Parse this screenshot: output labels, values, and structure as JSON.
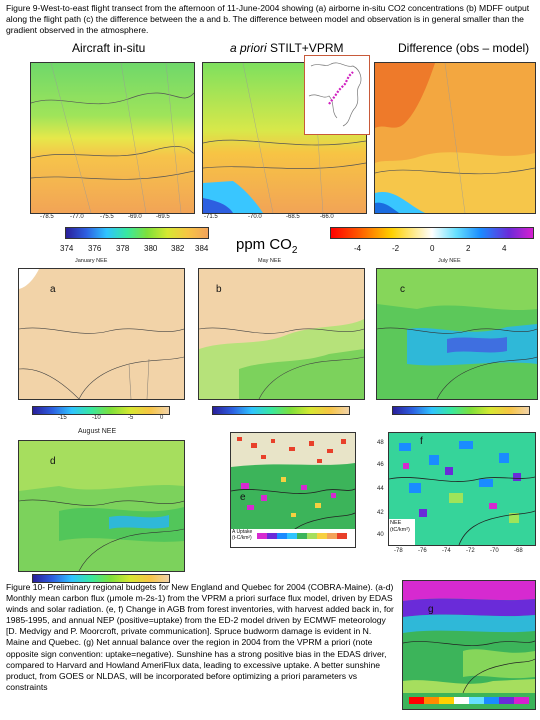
{
  "fig9": {
    "caption": "Figure 9-West-to-east flight transect from the afternoon of 11-June-2004 showing (a) airborne in-situ CO2 concentrations (b) MDFF output along the flight path (c) the difference between the a and b. The difference between model and observation is in general smaller than the gradient observed in the atmosphere.",
    "header_insitu": "Aircraft in-situ",
    "header_stilt_italic": "a priori",
    "header_stilt_rest": " STILT+VPRM",
    "header_diff": "Difference (obs – model)",
    "xticks_a": [
      "-78.5",
      "-77.0",
      "-75.5",
      "-69.0",
      "-69.5"
    ],
    "xticks_b": [
      "-71.5",
      "-70.0",
      "-68.5",
      "-66.0"
    ],
    "cbar_left_labels": [
      "374",
      "376",
      "378",
      "380",
      "382",
      "384"
    ],
    "units_base": "ppm CO",
    "units_sub": "2",
    "cbar_right_labels": [
      "-4",
      "-2",
      "0",
      "2",
      "4"
    ]
  },
  "nee": {
    "title_a": "January NEE",
    "title_b": "May NEE",
    "title_c": "July NEE",
    "title_d": "August NEE",
    "panel_a": "a",
    "panel_b": "b",
    "panel_c": "c",
    "panel_d": "d",
    "panel_e": "e",
    "panel_f": "f",
    "panel_g": "g",
    "cbar_ticks": [
      "-15",
      "-10",
      "-5",
      "0"
    ],
    "e_legend": "A Uptake\n(t-C/km²)",
    "f_legend": "NEE\n(tC/km²)",
    "f_xticks": [
      "-78",
      "-76",
      "-74",
      "-72",
      "-70",
      "-68"
    ],
    "f_yticks": [
      "48",
      "46",
      "44",
      "42",
      "40"
    ]
  },
  "fig10": {
    "caption": "Figure 10- Preliminary regional budgets for New England and Quebec for 2004 (COBRA-Maine). (a-d) Monthly mean carbon flux (μmole m-2s-1) from the VPRM a priori surface flux model, driven by EDAS winds and solar radiation. (e, f) Change in AGB from forest inventories, with harvest added back in, for 1985-1995, and annual NEP (positive=uptake) from the ED-2 model driven by ECMWF meteorology [D. Medvigy and P. Moorcroft, private communication]. Spruce budworm damage is evident in N. Maine and Quebec. (g) Net annual balance over the region in 2004 from the VPRM a priori (note opposite sign convention: uptake=negative). Sunshine has a strong positive bias in the EDAS driver, compared to Harvard and Howland AmeriFlux data, leading to excessive uptake. A better sunshine product, from GOES or NLDAS, will be incorporated before optimizing a priori parameters vs constraints"
  },
  "colors": {
    "map_land_jan": "#f2d3a8",
    "map_water": "#ffffff",
    "cbar_co2": [
      "#2a1f9a",
      "#2d5fe0",
      "#2fc4ff",
      "#38e8a0",
      "#7ee03a",
      "#d6e832",
      "#f7c544",
      "#f3a35a"
    ],
    "cbar_diff": [
      "#ff0000",
      "#ff5a00",
      "#ffd000",
      "#ffffff",
      "#66e0ff",
      "#1a8cff",
      "#6a2bd9",
      "#d61fd0"
    ]
  }
}
